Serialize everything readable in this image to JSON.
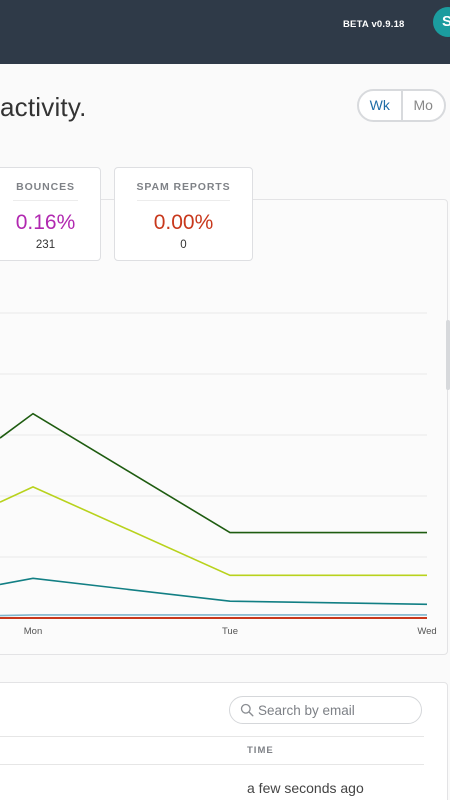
{
  "header": {
    "beta_label": "BETA v0.9.18",
    "avatar_initial": "S"
  },
  "page": {
    "title": "activity."
  },
  "period_toggle": {
    "options": [
      "Wk",
      "Mo"
    ],
    "selected": "Wk"
  },
  "stats": [
    {
      "label": "BOUNCES",
      "percent": "0.16%",
      "count": "231",
      "color": "#b128b0"
    },
    {
      "label": "SPAM REPORTS",
      "percent": "0.00%",
      "count": "0",
      "color": "#c8381c"
    }
  ],
  "chart_data": {
    "type": "line",
    "categories": [
      "Mon",
      "Tue",
      "Wed"
    ],
    "series": [
      {
        "color": "#1e5c10",
        "values": [
          6.7,
          2.8,
          2.8
        ]
      },
      {
        "color": "#b8d21c",
        "values": [
          4.3,
          1.4,
          1.4
        ]
      },
      {
        "color": "#127f84",
        "values": [
          1.3,
          0.55,
          0.45
        ]
      },
      {
        "color": "#7fb6cc",
        "values": [
          0.1,
          0.1,
          0.1
        ]
      },
      {
        "color": "#c8381c",
        "values": [
          0.0,
          0.0,
          0.0
        ]
      }
    ],
    "ylim": [
      0,
      10
    ],
    "gridlines": true
  },
  "activity_table": {
    "search_placeholder": "Search by email",
    "columns": [
      "TIME"
    ],
    "rows": [
      {
        "time": "a few seconds ago"
      }
    ]
  }
}
